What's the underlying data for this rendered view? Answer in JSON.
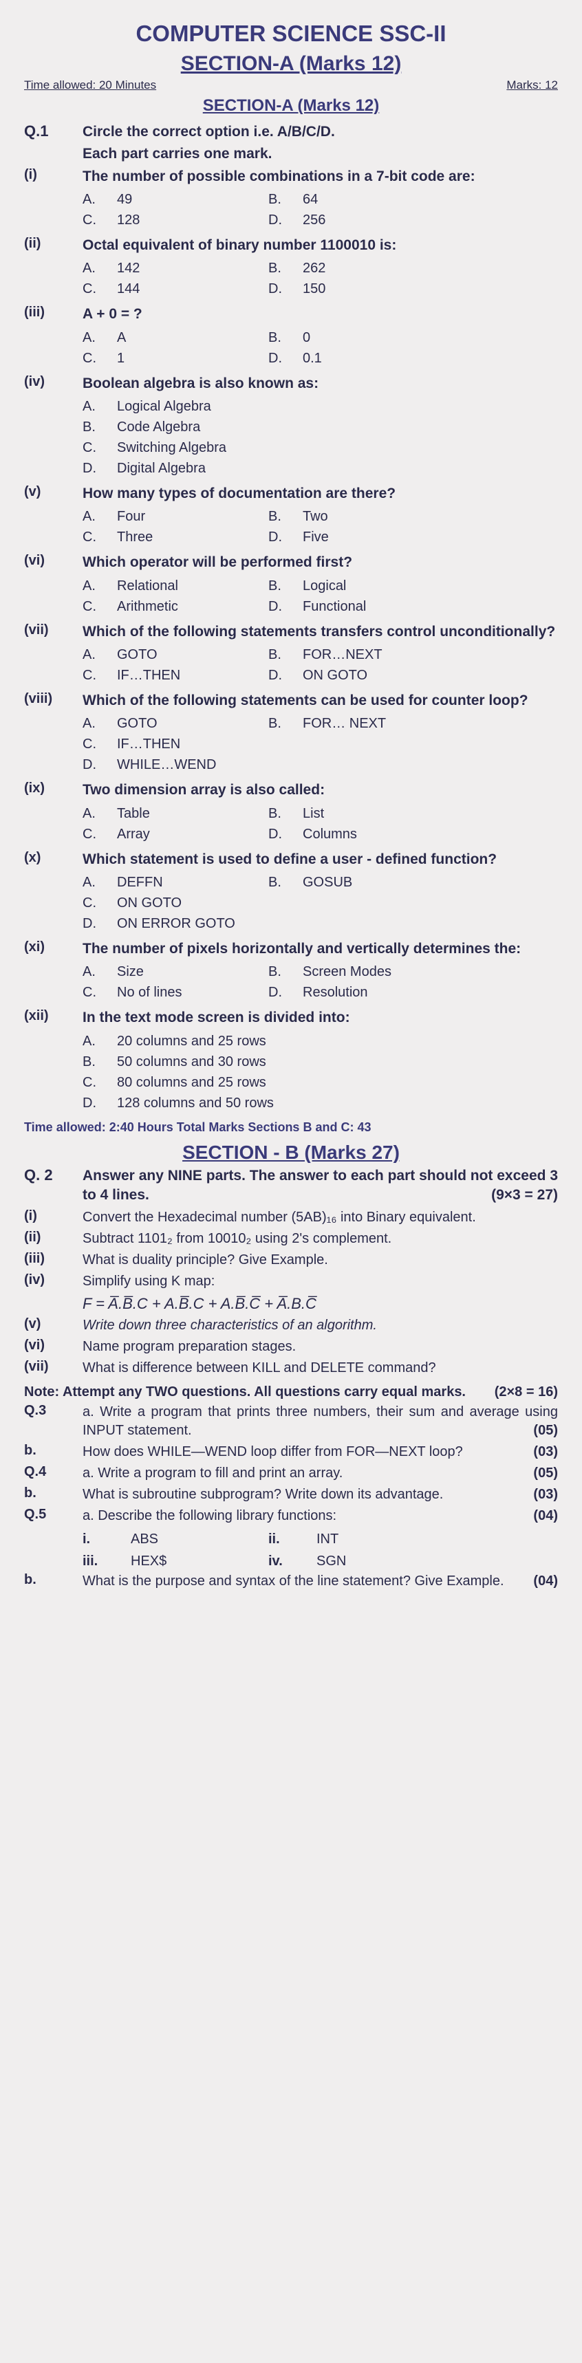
{
  "header": {
    "title": "COMPUTER SCIENCE SSC-II",
    "sectionA": "SECTION-A (Marks 12)",
    "timeA": "Time allowed: 20 Minutes",
    "marksA": "Marks: 12",
    "subA": "SECTION-A (Marks 12)"
  },
  "q1": {
    "num": "Q.1",
    "instr1": "Circle the correct option i.e. A/B/C/D.",
    "instr2": "Each part carries one mark."
  },
  "p1": {
    "n": "(i)",
    "q": "The number of possible combinations in a 7-bit code are:",
    "a": "49",
    "b": "64",
    "c": "128",
    "d": "256"
  },
  "p2": {
    "n": "(ii)",
    "q": "Octal equivalent of binary number 1100010 is:",
    "a": "142",
    "b": "262",
    "c": "144",
    "d": "150"
  },
  "p3": {
    "n": "(iii)",
    "q": "A + 0 = ?",
    "a": "A",
    "b": "0",
    "c": "1",
    "d": "0.1"
  },
  "p4": {
    "n": "(iv)",
    "q": "Boolean algebra is also known as:",
    "a": "Logical Algebra",
    "b": "Code Algebra",
    "c": "Switching Algebra",
    "d": "Digital Algebra"
  },
  "p5": {
    "n": "(v)",
    "q": "How many types of documentation are there?",
    "a": "Four",
    "b": "Two",
    "c": "Three",
    "d": "Five"
  },
  "p6": {
    "n": "(vi)",
    "q": "Which operator will be performed first?",
    "a": "Relational",
    "b": "Logical",
    "c": "Arithmetic",
    "d": "Functional"
  },
  "p7": {
    "n": "(vii)",
    "q": "Which of the following statements transfers control unconditionally?",
    "a": "GOTO",
    "b": "FOR…NEXT",
    "c": "IF…THEN",
    "d": "ON GOTO"
  },
  "p8": {
    "n": "(viii)",
    "q": "Which of the following statements can be used for counter loop?",
    "a": "GOTO",
    "b": "FOR… NEXT",
    "c": "IF…THEN",
    "d": "WHILE…WEND"
  },
  "p9": {
    "n": "(ix)",
    "q": "Two dimension array is also called:",
    "a": "Table",
    "b": "List",
    "c": "Array",
    "d": "Columns"
  },
  "p10": {
    "n": "(x)",
    "q": "Which statement is used to define a user - defined function?",
    "a": "DEFFN",
    "b": "GOSUB",
    "c": "ON GOTO",
    "d": "ON ERROR GOTO"
  },
  "p11": {
    "n": "(xi)",
    "q": "The number of pixels horizontally and vertically determines the:",
    "a": "Size",
    "b": "Screen Modes",
    "c": "No of lines",
    "d": "Resolution"
  },
  "p12": {
    "n": "(xii)",
    "q": "In the text mode screen is divided into:",
    "a": "20 columns and 25 rows",
    "b": "50 columns and 30 rows",
    "c": "80 columns and 25 rows",
    "d": "128 columns and 50 rows"
  },
  "timeB": "Time allowed: 2:40 Hours    Total Marks Sections B and C: 43",
  "sectionB": "SECTION - B (Marks 27)",
  "q2": {
    "num": "Q. 2",
    "instr": "Answer any NINE parts. The answer to each part should not exceed 3 to 4 lines.",
    "marks": "(9×3 = 27)"
  },
  "b1": {
    "n": "(i)",
    "t": "Convert the Hexadecimal number (5AB)₁₆ into Binary equivalent."
  },
  "b2": {
    "n": "(ii)",
    "t": "Subtract 1101₂ from 10010₂ using 2's complement."
  },
  "b3": {
    "n": "(iii)",
    "t": "What is duality principle? Give Example."
  },
  "b4": {
    "n": "(iv)",
    "t": "Simplify using K map:"
  },
  "b4f": "F = A̅.B̅.C + A.B̅.C + A.B̅.C̅ + A̅.B.C̅",
  "b5": {
    "n": "(v)",
    "t": "Write down three characteristics of an algorithm."
  },
  "b6": {
    "n": "(vi)",
    "t": "Name program preparation stages."
  },
  "b7": {
    "n": "(vii)",
    "t": "What is difference between KILL and DELETE command?"
  },
  "note": {
    "label": "Note:",
    "text": "Attempt any TWO questions. All questions carry equal marks.",
    "marks": "(2×8 = 16)"
  },
  "q3": {
    "num": "Q.3",
    "a": "a.  Write a program that prints three numbers, their sum and average using INPUT statement.",
    "am": "(05)",
    "bn": "b.",
    "b": "How does WHILE—WEND loop differ from FOR—NEXT loop?",
    "bm": "(03)"
  },
  "q4": {
    "num": "Q.4",
    "a": "a. Write a program to fill and print an array.",
    "am": "(05)",
    "bn": "b.",
    "b": "What is subroutine subprogram? Write down its advantage.",
    "bm": "(03)"
  },
  "q5": {
    "num": "Q.5",
    "a": "a.   Describe   the   following   library functions:",
    "am": "(04)",
    "f1l": "i.",
    "f1": "ABS",
    "f2l": "ii.",
    "f2": "INT",
    "f3l": "iii.",
    "f3": "HEX$",
    "f4l": "iv.",
    "f4": "SGN",
    "bn": "b.",
    "b": "What is the purpose and syntax of the line statement? Give Example.",
    "bm": "(04)"
  }
}
